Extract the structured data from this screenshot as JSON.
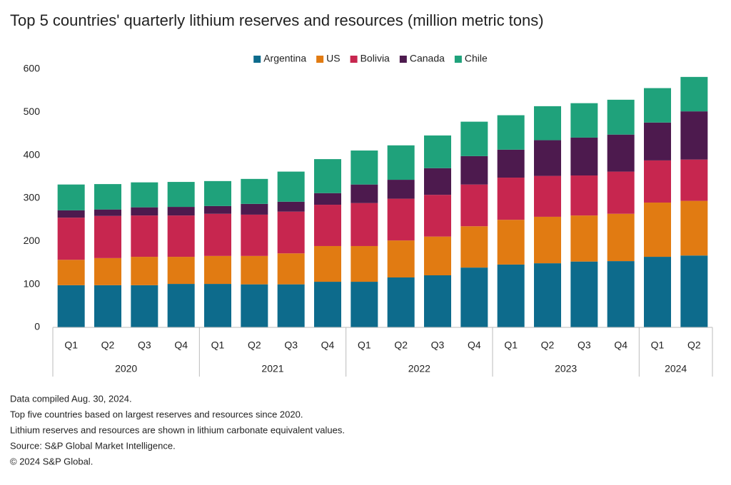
{
  "chart_data": {
    "type": "stacked_bar",
    "title": "Top 5 countries' quarterly lithium reserves and resources (million metric tons)",
    "categories": [
      "Q1",
      "Q2",
      "Q3",
      "Q4",
      "Q1",
      "Q2",
      "Q3",
      "Q4",
      "Q1",
      "Q2",
      "Q3",
      "Q4",
      "Q1",
      "Q2",
      "Q3",
      "Q4",
      "Q1",
      "Q2"
    ],
    "x_groups": [
      {
        "label": "2020",
        "span": 4
      },
      {
        "label": "2021",
        "span": 4
      },
      {
        "label": "2022",
        "span": 4
      },
      {
        "label": "2023",
        "span": 4
      },
      {
        "label": "2024",
        "span": 2
      }
    ],
    "series": [
      {
        "name": "Argentina",
        "color": "#0d6b8c",
        "values": [
          98,
          98,
          98,
          101,
          101,
          100,
          100,
          106,
          106,
          116,
          121,
          139,
          146,
          149,
          153,
          154,
          164,
          167
        ]
      },
      {
        "name": "US",
        "color": "#e17b12",
        "values": [
          59,
          63,
          66,
          63,
          65,
          66,
          72,
          83,
          83,
          86,
          90,
          96,
          104,
          108,
          107,
          110,
          126,
          127
        ]
      },
      {
        "name": "Bolivia",
        "color": "#c7264f",
        "values": [
          98,
          98,
          96,
          96,
          98,
          96,
          97,
          96,
          100,
          97,
          97,
          97,
          98,
          95,
          93,
          98,
          98,
          96
        ]
      },
      {
        "name": "Canada",
        "color": "#4d1a4e",
        "values": [
          17,
          15,
          19,
          20,
          18,
          25,
          23,
          27,
          43,
          44,
          62,
          66,
          65,
          83,
          88,
          86,
          88,
          112
        ]
      },
      {
        "name": "Chile",
        "color": "#1fa27b",
        "values": [
          60,
          59,
          58,
          58,
          58,
          58,
          70,
          79,
          79,
          80,
          76,
          80,
          80,
          79,
          80,
          81,
          80,
          80
        ]
      }
    ],
    "ylim": [
      0,
      600
    ],
    "yticks": [
      0,
      100,
      200,
      300,
      400,
      500,
      600
    ],
    "grid": false,
    "legend": "top",
    "notes": [
      "Data compiled Aug. 30, 2024.",
      "Top five countries based on largest reserves and resources since 2020.",
      "Lithium reserves and resources are shown in lithium carbonate equivalent values.",
      "Source: S&P Global Market Intelligence.",
      "© 2024 S&P Global."
    ]
  }
}
